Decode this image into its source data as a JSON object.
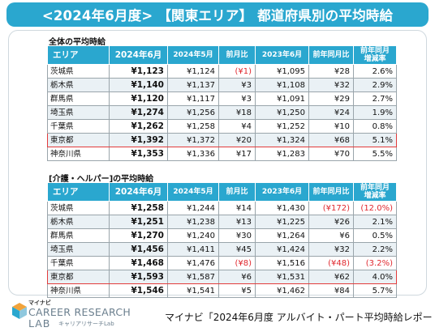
{
  "title": "<2024年6月度> 【関東エリア】 都道府県別の平均時給",
  "sections": [
    {
      "label": "全体の平均時給",
      "headers": [
        "エリア",
        "2024年6月",
        "2024年5月",
        "前月比",
        "2023年6月",
        "前年同月比",
        "前年同月\n増減率"
      ],
      "rows": [
        {
          "pref": "茨城県",
          "jun24": "¥1,123",
          "may24": "¥1,124",
          "mom": "(¥1)",
          "mom_neg": true,
          "jun23": "¥1,095",
          "yoy": "¥28",
          "yoy_neg": false,
          "rate": "2.6%",
          "rate_neg": false
        },
        {
          "pref": "栃木県",
          "jun24": "¥1,140",
          "may24": "¥1,137",
          "mom": "¥3",
          "mom_neg": false,
          "jun23": "¥1,108",
          "yoy": "¥32",
          "yoy_neg": false,
          "rate": "2.9%",
          "rate_neg": false
        },
        {
          "pref": "群馬県",
          "jun24": "¥1,120",
          "may24": "¥1,117",
          "mom": "¥3",
          "mom_neg": false,
          "jun23": "¥1,091",
          "yoy": "¥29",
          "yoy_neg": false,
          "rate": "2.7%",
          "rate_neg": false
        },
        {
          "pref": "埼玉県",
          "jun24": "¥1,274",
          "may24": "¥1,256",
          "mom": "¥18",
          "mom_neg": false,
          "jun23": "¥1,250",
          "yoy": "¥24",
          "yoy_neg": false,
          "rate": "1.9%",
          "rate_neg": false
        },
        {
          "pref": "千葉県",
          "jun24": "¥1,262",
          "may24": "¥1,258",
          "mom": "¥4",
          "mom_neg": false,
          "jun23": "¥1,252",
          "yoy": "¥10",
          "yoy_neg": false,
          "rate": "0.8%",
          "rate_neg": false
        },
        {
          "pref": "東京都",
          "jun24": "¥1,392",
          "may24": "¥1,372",
          "mom": "¥20",
          "mom_neg": false,
          "jun23": "¥1,324",
          "yoy": "¥68",
          "yoy_neg": false,
          "rate": "5.1%",
          "rate_neg": false,
          "highlight": true
        },
        {
          "pref": "神奈川県",
          "jun24": "¥1,353",
          "may24": "¥1,336",
          "mom": "¥17",
          "mom_neg": false,
          "jun23": "¥1,283",
          "yoy": "¥70",
          "yoy_neg": false,
          "rate": "5.5%",
          "rate_neg": false
        }
      ]
    },
    {
      "label": "[介護・ヘルパー]の平均時給",
      "headers": [
        "エリア",
        "2024年6月",
        "2024年5月",
        "前月比",
        "2023年6月",
        "前年同月比",
        "前年同月\n増減率"
      ],
      "rows": [
        {
          "pref": "茨城県",
          "jun24": "¥1,258",
          "may24": "¥1,244",
          "mom": "¥14",
          "mom_neg": false,
          "jun23": "¥1,430",
          "yoy": "(¥172)",
          "yoy_neg": true,
          "rate": "(12.0%)",
          "rate_neg": true
        },
        {
          "pref": "栃木県",
          "jun24": "¥1,251",
          "may24": "¥1,238",
          "mom": "¥13",
          "mom_neg": false,
          "jun23": "¥1,225",
          "yoy": "¥26",
          "yoy_neg": false,
          "rate": "2.1%",
          "rate_neg": false
        },
        {
          "pref": "群馬県",
          "jun24": "¥1,270",
          "may24": "¥1,240",
          "mom": "¥30",
          "mom_neg": false,
          "jun23": "¥1,264",
          "yoy": "¥6",
          "yoy_neg": false,
          "rate": "0.5%",
          "rate_neg": false
        },
        {
          "pref": "埼玉県",
          "jun24": "¥1,456",
          "may24": "¥1,411",
          "mom": "¥45",
          "mom_neg": false,
          "jun23": "¥1,424",
          "yoy": "¥32",
          "yoy_neg": false,
          "rate": "2.2%",
          "rate_neg": false
        },
        {
          "pref": "千葉県",
          "jun24": "¥1,468",
          "may24": "¥1,476",
          "mom": "(¥8)",
          "mom_neg": true,
          "jun23": "¥1,516",
          "yoy": "(¥48)",
          "yoy_neg": true,
          "rate": "(3.2%)",
          "rate_neg": true
        },
        {
          "pref": "東京都",
          "jun24": "¥1,593",
          "may24": "¥1,587",
          "mom": "¥6",
          "mom_neg": false,
          "jun23": "¥1,531",
          "yoy": "¥62",
          "yoy_neg": false,
          "rate": "4.0%",
          "rate_neg": false,
          "highlight": true
        },
        {
          "pref": "神奈川県",
          "jun24": "¥1,546",
          "may24": "¥1,541",
          "mom": "¥5",
          "mom_neg": false,
          "jun23": "¥1,462",
          "yoy": "¥84",
          "yoy_neg": false,
          "rate": "5.7%",
          "rate_neg": false
        }
      ]
    }
  ],
  "logo": {
    "small": "マイナビ",
    "line1": "CAREER RESEARCH",
    "line2": "LAB",
    "line2_sub": "キャリアリサーチLab",
    "icon": "cube-logo-icon"
  },
  "source": "マイナビ「2024年6月度 アルバイト・パート平均時給レポート」",
  "colors": {
    "accent": "#2aa7cf",
    "highlight": "#e23b3b",
    "negative": "#e0282e",
    "alt_row": "#eaf1f5"
  }
}
